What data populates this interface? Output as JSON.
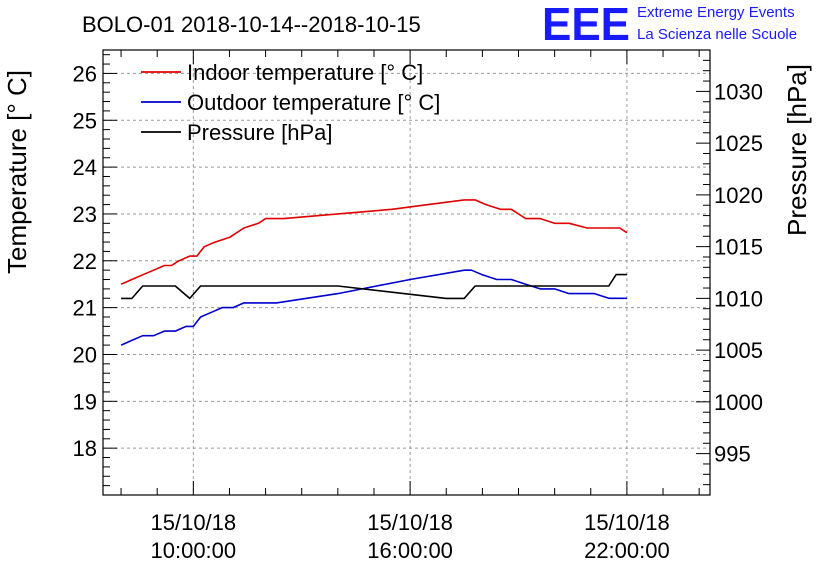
{
  "title": "BOLO-01 2018-10-14--2018-10-15",
  "logo": {
    "mark": "EEE",
    "line1": "Extreme Energy Events",
    "line2": "La Scienza nelle Scuole",
    "color": "#1a1aff"
  },
  "chart_data": {
    "type": "line",
    "title": "BOLO-01 2018-10-14--2018-10-15",
    "xlabel": "",
    "ylabel": "Temperature [° C]",
    "ylabel_right": "Pressure [hPa]",
    "x_unit": "hours",
    "xlim": [
      7.5,
      24.3
    ],
    "ylim": [
      17,
      26.5
    ],
    "ylim_right": [
      991,
      1034
    ],
    "x_ticks": [
      {
        "x": 10,
        "date": "15/10/18",
        "time": "10:00:00"
      },
      {
        "x": 16,
        "date": "15/10/18",
        "time": "16:00:00"
      },
      {
        "x": 22,
        "date": "15/10/18",
        "time": "22:00:00"
      }
    ],
    "y_ticks_left": [
      18,
      19,
      20,
      21,
      22,
      23,
      24,
      25,
      26
    ],
    "y_ticks_right": [
      995,
      1000,
      1005,
      1010,
      1015,
      1020,
      1025,
      1030
    ],
    "grid": true,
    "legend_position": "top-left",
    "series": [
      {
        "name": "Indoor temperature [° C]",
        "axis": "left",
        "color": "#e00000",
        "x": [
          8.0,
          8.3,
          8.6,
          8.9,
          9.2,
          9.4,
          9.6,
          9.9,
          10.1,
          10.3,
          10.6,
          11.0,
          11.4,
          11.8,
          12.0,
          12.5,
          14.0,
          15.5,
          16.5,
          17.5,
          17.8,
          18.1,
          18.5,
          18.8,
          19.2,
          19.6,
          20.0,
          20.4,
          20.9,
          21.3,
          21.8,
          22.0
        ],
        "y": [
          21.5,
          21.6,
          21.7,
          21.8,
          21.9,
          21.9,
          22.0,
          22.1,
          22.1,
          22.3,
          22.4,
          22.5,
          22.7,
          22.8,
          22.9,
          22.9,
          23.0,
          23.1,
          23.2,
          23.3,
          23.3,
          23.2,
          23.1,
          23.1,
          22.9,
          22.9,
          22.8,
          22.8,
          22.7,
          22.7,
          22.7,
          22.6
        ]
      },
      {
        "name": "Outdoor temperature [° C]",
        "axis": "left",
        "color": "#0000cc",
        "x": [
          8.0,
          8.3,
          8.6,
          8.9,
          9.2,
          9.5,
          9.8,
          10.0,
          10.2,
          10.5,
          10.8,
          11.1,
          11.4,
          11.8,
          12.0,
          12.3,
          14.0,
          16.0,
          17.5,
          17.7,
          18.0,
          18.4,
          18.8,
          19.2,
          19.6,
          20.0,
          20.4,
          20.8,
          21.1,
          21.5,
          22.0
        ],
        "y": [
          20.2,
          20.3,
          20.4,
          20.4,
          20.5,
          20.5,
          20.6,
          20.6,
          20.8,
          20.9,
          21.0,
          21.0,
          21.1,
          21.1,
          21.1,
          21.1,
          21.3,
          21.6,
          21.8,
          21.8,
          21.7,
          21.6,
          21.6,
          21.5,
          21.4,
          21.4,
          21.3,
          21.3,
          21.3,
          21.2,
          21.2
        ]
      },
      {
        "name": "Pressure [hPa]",
        "axis": "right",
        "color": "#000000",
        "x": [
          8.0,
          8.3,
          8.6,
          9.0,
          9.5,
          9.9,
          10.2,
          12.0,
          14.0,
          17.0,
          17.5,
          17.8,
          19.0,
          21.0,
          21.5,
          21.7,
          22.0
        ],
        "y": [
          1010.0,
          1010.0,
          1011.2,
          1011.2,
          1011.2,
          1010.0,
          1011.2,
          1011.2,
          1011.2,
          1010.0,
          1010.0,
          1011.2,
          1011.2,
          1011.2,
          1011.2,
          1012.3,
          1012.3
        ]
      }
    ]
  }
}
